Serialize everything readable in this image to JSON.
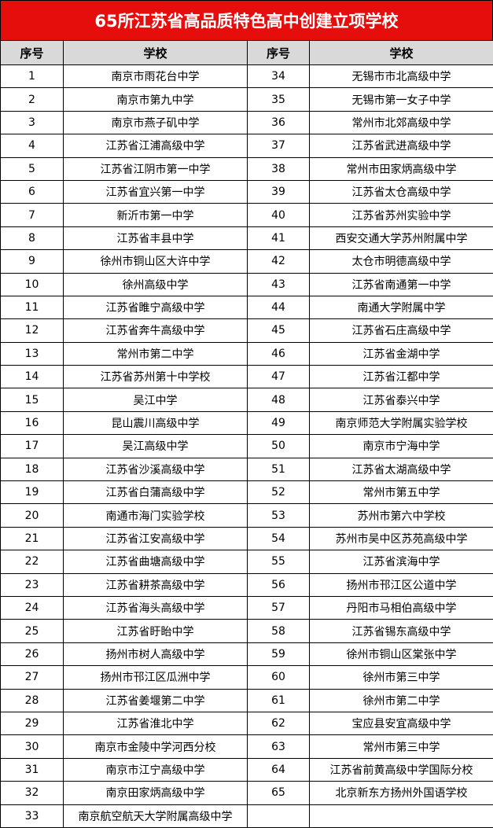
{
  "title": "65所江苏省高品质特色高中创建立项学校",
  "headers": [
    "序号",
    "学校",
    "序号",
    "学校"
  ],
  "colors": {
    "title_bg": "#e60d0d",
    "header_bg": "#d9d9d9"
  },
  "rows": [
    {
      "n1": "1",
      "s1": "南京市雨花台中学",
      "n2": "34",
      "s2": "无锡市市北高级中学"
    },
    {
      "n1": "2",
      "s1": "南京市第九中学",
      "n2": "35",
      "s2": "无锡市第一女子中学"
    },
    {
      "n1": "3",
      "s1": "南京市燕子矶中学",
      "n2": "36",
      "s2": "常州市北郊高级中学"
    },
    {
      "n1": "4",
      "s1": "江苏省江浦高级中学",
      "n2": "37",
      "s2": "江苏省武进高级中学"
    },
    {
      "n1": "5",
      "s1": "江苏省江阴市第一中学",
      "n2": "38",
      "s2": "常州市田家炳高级中学"
    },
    {
      "n1": "6",
      "s1": "江苏省宜兴第一中学",
      "n2": "39",
      "s2": "江苏省太仓高级中学"
    },
    {
      "n1": "7",
      "s1": "新沂市第一中学",
      "n2": "40",
      "s2": "江苏省苏州实验中学"
    },
    {
      "n1": "8",
      "s1": "江苏省丰县中学",
      "n2": "41",
      "s2": "西安交通大学苏州附属中学"
    },
    {
      "n1": "9",
      "s1": "徐州市铜山区大许中学",
      "n2": "42",
      "s2": "太仓市明德高级中学"
    },
    {
      "n1": "10",
      "s1": "徐州高级中学",
      "n2": "43",
      "s2": "江苏省南通第一中学"
    },
    {
      "n1": "11",
      "s1": "江苏省睢宁高级中学",
      "n2": "44",
      "s2": "南通大学附属中学"
    },
    {
      "n1": "12",
      "s1": "江苏省奔牛高级中学",
      "n2": "45",
      "s2": "江苏省石庄高级中学"
    },
    {
      "n1": "13",
      "s1": "常州市第二中学",
      "n2": "46",
      "s2": "江苏省金湖中学"
    },
    {
      "n1": "14",
      "s1": "江苏省苏州第十中学校",
      "n2": "47",
      "s2": "江苏省江都中学"
    },
    {
      "n1": "15",
      "s1": "吴江中学",
      "n2": "48",
      "s2": "江苏省泰兴中学"
    },
    {
      "n1": "16",
      "s1": "昆山震川高级中学",
      "n2": "49",
      "s2": "南京师范大学附属实验学校"
    },
    {
      "n1": "17",
      "s1": "吴江高级中学",
      "n2": "50",
      "s2": "南京市宁海中学"
    },
    {
      "n1": "18",
      "s1": "江苏省沙溪高级中学",
      "n2": "51",
      "s2": "江苏省太湖高级中学"
    },
    {
      "n1": "19",
      "s1": "江苏省白蒲高级中学",
      "n2": "52",
      "s2": "常州市第五中学"
    },
    {
      "n1": "20",
      "s1": "南通市海门实验学校",
      "n2": "53",
      "s2": "苏州市第六中学校"
    },
    {
      "n1": "21",
      "s1": "江苏省江安高级中学",
      "n2": "54",
      "s2": "苏州市吴中区苏苑高级中学"
    },
    {
      "n1": "22",
      "s1": "江苏省曲塘高级中学",
      "n2": "55",
      "s2": "江苏省滨海中学"
    },
    {
      "n1": "23",
      "s1": "江苏省耕茶高级中学",
      "n2": "56",
      "s2": "扬州市邗江区公道中学"
    },
    {
      "n1": "24",
      "s1": "江苏省海头高级中学",
      "n2": "57",
      "s2": "丹阳市马相伯高级中学"
    },
    {
      "n1": "25",
      "s1": "江苏省盱眙中学",
      "n2": "58",
      "s2": "江苏省锡东高级中学"
    },
    {
      "n1": "26",
      "s1": "扬州市树人高级中学",
      "n2": "59",
      "s2": "徐州市铜山区棠张中学"
    },
    {
      "n1": "27",
      "s1": "扬州市邗江区瓜洲中学",
      "n2": "60",
      "s2": "徐州市第三中学"
    },
    {
      "n1": "28",
      "s1": "江苏省姜堰第二中学",
      "n2": "61",
      "s2": "徐州市第二中学"
    },
    {
      "n1": "29",
      "s1": "江苏省淮北中学",
      "n2": "62",
      "s2": "宝应县安宜高级中学"
    },
    {
      "n1": "30",
      "s1": "南京市金陵中学河西分校",
      "n2": "63",
      "s2": "常州市第三中学"
    },
    {
      "n1": "31",
      "s1": "南京市江宁高级中学",
      "n2": "64",
      "s2": "江苏省前黄高级中学国际分校"
    },
    {
      "n1": "32",
      "s1": "南京田家炳高级中学",
      "n2": "65",
      "s2": "北京新东方扬州外国语学校"
    },
    {
      "n1": "33",
      "s1": "南京航空航天大学附属高级中学",
      "n2": "",
      "s2": ""
    }
  ]
}
